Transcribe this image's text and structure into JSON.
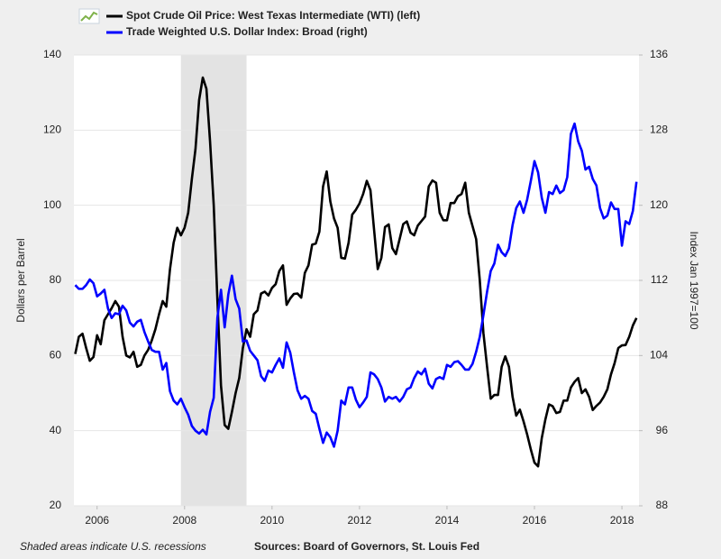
{
  "chart_data": {
    "type": "line",
    "y_label": "Dollars per Barrel",
    "y2_label": "Index Jan 1997=100",
    "note": "Shaded areas indicate U.S. recessions",
    "source": "Sources: Board of Governors, St. Louis Fed",
    "recessions": [
      [
        2007.917,
        2009.417
      ]
    ],
    "recession_color": "#e3e3e3",
    "grid": true,
    "xlim": [
      2005.47,
      2018.39
    ],
    "xticks": [
      2006,
      2008,
      2010,
      2012,
      2014,
      2016,
      2018
    ],
    "ylim": [
      20,
      140
    ],
    "yticks": [
      20,
      40,
      60,
      80,
      100,
      120,
      140
    ],
    "y2lim": [
      88,
      136
    ],
    "y2ticks": [
      88,
      96,
      104,
      112,
      120,
      128,
      136
    ],
    "x": [
      2005.5,
      2005.583,
      2005.667,
      2005.75,
      2005.833,
      2005.917,
      2006,
      2006.083,
      2006.167,
      2006.25,
      2006.333,
      2006.417,
      2006.5,
      2006.583,
      2006.667,
      2006.75,
      2006.833,
      2006.917,
      2007,
      2007.083,
      2007.167,
      2007.25,
      2007.333,
      2007.417,
      2007.5,
      2007.583,
      2007.667,
      2007.75,
      2007.833,
      2007.917,
      2008,
      2008.083,
      2008.167,
      2008.25,
      2008.333,
      2008.417,
      2008.5,
      2008.583,
      2008.667,
      2008.75,
      2008.833,
      2008.917,
      2009,
      2009.083,
      2009.167,
      2009.25,
      2009.333,
      2009.417,
      2009.5,
      2009.583,
      2009.667,
      2009.75,
      2009.833,
      2009.917,
      2010,
      2010.083,
      2010.167,
      2010.25,
      2010.333,
      2010.417,
      2010.5,
      2010.583,
      2010.667,
      2010.75,
      2010.833,
      2010.917,
      2011,
      2011.083,
      2011.167,
      2011.25,
      2011.333,
      2011.417,
      2011.5,
      2011.583,
      2011.667,
      2011.75,
      2011.833,
      2011.917,
      2012,
      2012.083,
      2012.167,
      2012.25,
      2012.333,
      2012.417,
      2012.5,
      2012.583,
      2012.667,
      2012.75,
      2012.833,
      2012.917,
      2013,
      2013.083,
      2013.167,
      2013.25,
      2013.333,
      2013.417,
      2013.5,
      2013.583,
      2013.667,
      2013.75,
      2013.833,
      2013.917,
      2014,
      2014.083,
      2014.167,
      2014.25,
      2014.333,
      2014.417,
      2014.5,
      2014.583,
      2014.667,
      2014.75,
      2014.833,
      2014.917,
      2015,
      2015.083,
      2015.167,
      2015.25,
      2015.333,
      2015.417,
      2015.5,
      2015.583,
      2015.667,
      2015.75,
      2015.833,
      2015.917,
      2016,
      2016.083,
      2016.167,
      2016.25,
      2016.333,
      2016.417,
      2016.5,
      2016.583,
      2016.667,
      2016.75,
      2016.833,
      2016.917,
      2017,
      2017.083,
      2017.167,
      2017.25,
      2017.333,
      2017.417,
      2017.5,
      2017.583,
      2017.667,
      2017.75,
      2017.833,
      2017.917,
      2018,
      2018.083,
      2018.167,
      2018.25,
      2018.333
    ],
    "series": [
      {
        "name": "Spot Crude Oil Price: West Texas Intermediate (WTI) (left)",
        "color": "#000000",
        "values": [
          60.4,
          65,
          65.8,
          62,
          58.6,
          59.6,
          65.4,
          63,
          69.4,
          71,
          72.6,
          74.5,
          73,
          65,
          60,
          59.5,
          61,
          57,
          57.5,
          60,
          61.5,
          64,
          67,
          71,
          74.5,
          73,
          83,
          90,
          94,
          92,
          94,
          98,
          107,
          115,
          128,
          134,
          131,
          117,
          100,
          75,
          52,
          41.5,
          40.5,
          45,
          50,
          54,
          62,
          67,
          65,
          71,
          72,
          76.5,
          77,
          76,
          78,
          79,
          82.5,
          84,
          73.5,
          75.2,
          76.4,
          76.5,
          75.4,
          82,
          84,
          89.5,
          89.8,
          93,
          105,
          109,
          101,
          96.5,
          94,
          86,
          85.8,
          90,
          97.5,
          98.8,
          100.5,
          103,
          106.5,
          104,
          93.5,
          83,
          86,
          94.2,
          94.9,
          88.6,
          87,
          91,
          95,
          95.7,
          92.7,
          92,
          94.6,
          95.8,
          97,
          105,
          106.6,
          106,
          98,
          96,
          96,
          100.6,
          100.6,
          102.4,
          103,
          106,
          98,
          94.5,
          91,
          80,
          66,
          57,
          48.5,
          49.5,
          49.5,
          57,
          59.8,
          57,
          49,
          44,
          45.6,
          42.5,
          39,
          35,
          31.5,
          30.5,
          38,
          43,
          47,
          46.5,
          44.7,
          45,
          48,
          48,
          51.5,
          53,
          54,
          50,
          51,
          49,
          45.5,
          46.6,
          47.5,
          49,
          51,
          55,
          58,
          62,
          62.7,
          62.8,
          65,
          68,
          70
        ]
      },
      {
        "name": "Trade Weighted U.S. Dollar Index: Broad (right)",
        "color": "#0000ff",
        "axis": "y2",
        "values": [
          111.5,
          111.1,
          111.1,
          111.5,
          112.1,
          111.7,
          110.3,
          110.6,
          111,
          109,
          108,
          108.5,
          108.4,
          109.3,
          108.8,
          107.5,
          107.1,
          107.6,
          107.8,
          106.5,
          105.5,
          104.6,
          104.4,
          104.4,
          102.5,
          103.2,
          100.2,
          99.2,
          98.8,
          99.4,
          98.5,
          97.7,
          96.5,
          96,
          95.7,
          96.1,
          95.6,
          98,
          99.5,
          108,
          111,
          107,
          110.5,
          112.5,
          110,
          109,
          105.5,
          105.6,
          104.5,
          104,
          103.5,
          101.8,
          101.3,
          102.4,
          102.2,
          103,
          103.7,
          102.7,
          105.4,
          104.3,
          102.2,
          100.3,
          99.4,
          99.7,
          99.4,
          98.1,
          97.8,
          96.2,
          94.7,
          95.8,
          95.3,
          94.3,
          96,
          99.2,
          98.8,
          100.6,
          100.6,
          99.3,
          98.5,
          99,
          99.6,
          102.2,
          102,
          101.5,
          100.6,
          99.1,
          99.6,
          99.4,
          99.6,
          99.1,
          99.6,
          100.4,
          100.6,
          101.6,
          102.3,
          102,
          102.6,
          101,
          100.5,
          101.5,
          101.7,
          101.5,
          103,
          102.8,
          103.3,
          103.4,
          103,
          102.5,
          102.5,
          103.1,
          104.4,
          106,
          108.3,
          110.8,
          113,
          113.8,
          115.8,
          115,
          114.6,
          115.4,
          117.9,
          119.7,
          120.4,
          119.2,
          120.6,
          122.6,
          124.7,
          123.5,
          120.8,
          119.2,
          121.4,
          121.2,
          122.1,
          121.3,
          121.6,
          123,
          127.6,
          128.7,
          126.8,
          125.8,
          123.8,
          124.1,
          122.8,
          122.1,
          119.7,
          118.6,
          118.9,
          120.3,
          119.6,
          119.6,
          115.7,
          118.3,
          118,
          119.4,
          122.5
        ]
      }
    ]
  }
}
